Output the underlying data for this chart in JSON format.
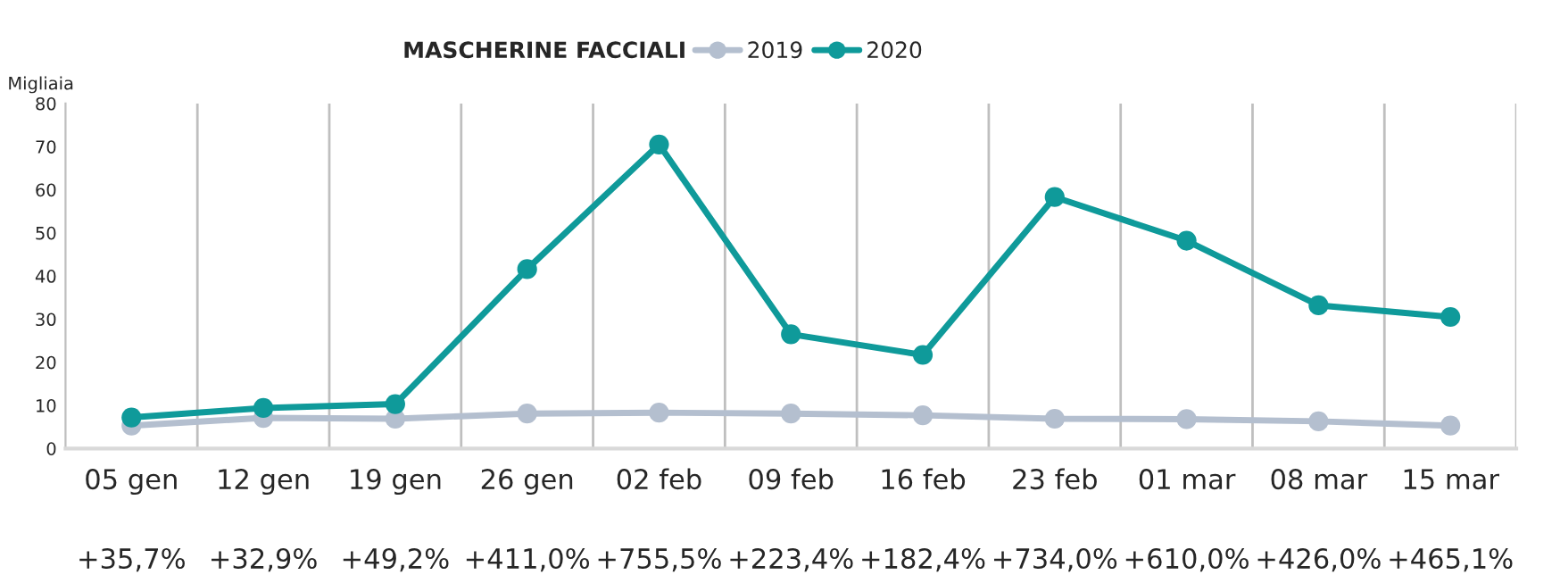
{
  "chart_data": {
    "type": "line",
    "title": "MASCHERINE FACCIALI",
    "ylabel": "Migliaia",
    "categories": [
      "05 gen",
      "12 gen",
      "19 gen",
      "26 gen",
      "02 feb",
      "09 feb",
      "16 feb",
      "23 feb",
      "01 mar",
      "08 mar",
      "15 mar"
    ],
    "series": [
      {
        "name": "2019",
        "color": "#b4bfcf",
        "values": [
          5.3,
          7.1,
          6.9,
          8.1,
          8.3,
          8.1,
          7.7,
          6.9,
          6.8,
          6.3,
          5.3
        ]
      },
      {
        "name": "2020",
        "color": "#0f9a9a",
        "values": [
          7.2,
          9.4,
          10.3,
          41.6,
          70.5,
          26.5,
          21.7,
          58.3,
          48.2,
          33.2,
          30.5
        ]
      }
    ],
    "annotations": [
      "+35,7%",
      "+32,9%",
      "+49,2%",
      "+411,0%",
      "+755,5%",
      "+223,4%",
      "+182,4%",
      "+734,0%",
      "+610,0%",
      "+426,0%",
      "+465,1%"
    ],
    "ylim": [
      0,
      80
    ],
    "yticks": [
      0,
      10,
      20,
      30,
      40,
      50,
      60,
      70,
      80
    ],
    "grid": "x",
    "legend": "top",
    "marker": "circle",
    "line_style": "solid"
  }
}
